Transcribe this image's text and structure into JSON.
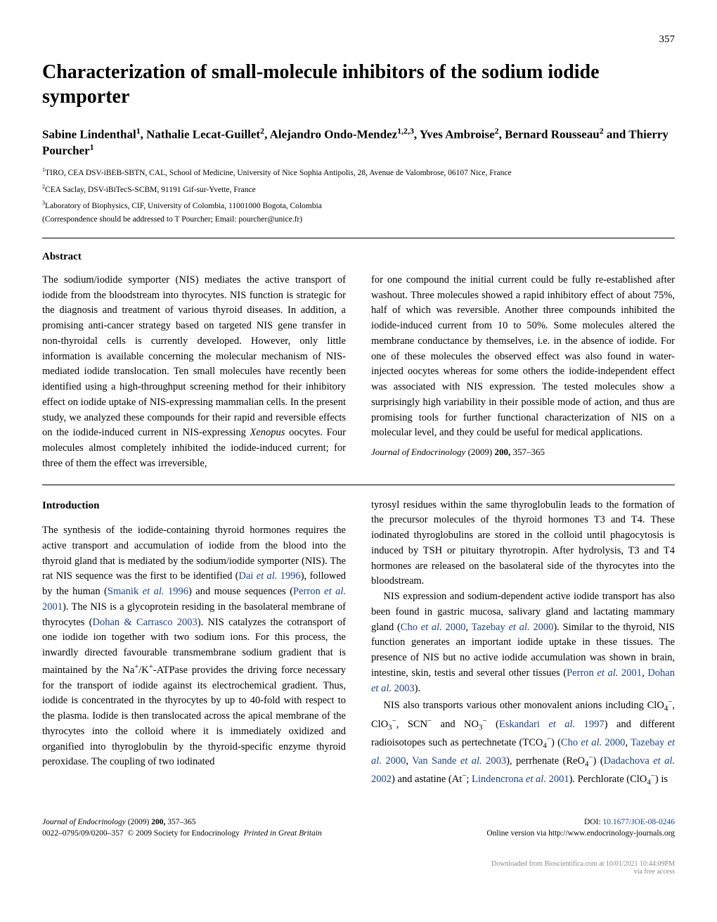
{
  "page_number": "357",
  "title": "Characterization of small-molecule inhibitors of the sodium iodide symporter",
  "authors_html": "Sabine Lindenthal<sup>1</sup>, Nathalie Lecat-Guillet<sup>2</sup>, Alejandro Ondo-Mendez<sup>1,2,3</sup>, Yves Ambroise<sup>2</sup>, Bernard Rousseau<sup>2</sup> and Thierry Pourcher<sup>1</sup>",
  "affiliations": [
    "<sup>1</sup>TIRO, CEA DSV-iBEB-SBTN, CAL, School of Medicine, University of Nice Sophia Antipolis, 28, Avenue de Valombrose, 06107 Nice, France",
    "<sup>2</sup>CEA Saclay, DSV-iBiTecS-SCBM, 91191 Gif-sur-Yvette, France",
    "<sup>3</sup>Laboratory of Biophysics, CIF, University of Colombia, 11001000 Bogota, Colombia"
  ],
  "correspondence": "(Correspondence should be addressed to T Pourcher; Email: pourcher@unice.fr)",
  "abstract": {
    "heading": "Abstract",
    "left": "The sodium/iodide symporter (NIS) mediates the active transport of iodide from the bloodstream into thyrocytes. NIS function is strategic for the diagnosis and treatment of various thyroid diseases. In addition, a promising anti-cancer strategy based on targeted NIS gene transfer in non-thyroidal cells is currently developed. However, only little information is available concerning the molecular mechanism of NIS-mediated iodide translocation. Ten small molecules have recently been identified using a high-throughput screening method for their inhibitory effect on iodide uptake of NIS-expressing mammalian cells. In the present study, we analyzed these compounds for their rapid and reversible effects on the iodide-induced current in NIS-expressing <i>Xenopus</i> oocytes. Four molecules almost completely inhibited the iodide-induced current; for three of them the effect was irreversible,",
    "right": "for one compound the initial current could be fully re-established after washout. Three molecules showed a rapid inhibitory effect of about 75%, half of which was reversible. Another three compounds inhibited the iodide-induced current from 10 to 50%. Some molecules altered the membrane conductance by themselves, i.e. in the absence of iodide. For one of these molecules the observed effect was also found in water-injected oocytes whereas for some others the iodide-independent effect was associated with NIS expression. The tested molecules show a surprisingly high variability in their possible mode of action, and thus are promising tools for further functional characterization of NIS on a molecular level, and they could be useful for medical applications.",
    "citation_journal": "Journal of Endocrinology",
    "citation_year": "(2009)",
    "citation_vol": "200,",
    "citation_pages": "357–365"
  },
  "introduction": {
    "heading": "Introduction",
    "left_paras": [
      "The synthesis of the iodide-containing thyroid hormones requires the active transport and accumulation of iodide from the blood into the thyroid gland that is mediated by the sodium/iodide symporter (NIS). The rat NIS sequence was the first to be identified (<span class=\"blue\">Dai <i>et al.</i> 1996</span>), followed by the human (<span class=\"blue\">Smanik <i>et al.</i> 1996</span>) and mouse sequences (<span class=\"blue\">Perron <i>et al.</i> 2001</span>). The NIS is a glycoprotein residing in the basolateral membrane of thyrocytes (<span class=\"blue\">Dohan &amp; Carrasco 2003</span>). NIS catalyzes the cotransport of one iodide ion together with two sodium ions. For this process, the inwardly directed favourable transmembrane sodium gradient that is maintained by the Na<span class=\"supn\">+</span>/K<span class=\"supn\">+</span>-ATPase provides the driving force necessary for the transport of iodide against its electrochemical gradient. Thus, iodide is concentrated in the thyrocytes by up to 40-fold with respect to the plasma. Iodide is then translocated across the apical membrane of the thyrocytes into the colloid where it is immediately oxidized and organified into thyroglobulin by the thyroid-specific enzyme thyroid peroxidase. The coupling of two iodinated"
    ],
    "right_paras": [
      "tyrosyl residues within the same thyroglobulin leads to the formation of the precursor molecules of the thyroid hormones T3 and T4. These iodinated thyroglobulins are stored in the colloid until phagocytosis is induced by TSH or pituitary thyrotropin. After hydrolysis, T3 and T4 hormones are released on the basolateral side of the thyrocytes into the bloodstream.",
      "NIS expression and sodium-dependent active iodide transport has also been found in gastric mucosa, salivary gland and lactating mammary gland (<span class=\"blue\">Cho <i>et al.</i> 2000</span>, <span class=\"blue\">Tazebay <i>et al.</i> 2000</span>). Similar to the thyroid, NIS function generates an important iodide uptake in these tissues. The presence of NIS but no active iodide accumulation was shown in brain, intestine, skin, testis and several other tissues (<span class=\"blue\">Perron <i>et al.</i> 2001</span>, <span class=\"blue\">Dohan <i>et al.</i> 2003</span>).",
      "NIS also transports various other monovalent anions including ClO<sub>4</sub><span class=\"supn\">−</span>, ClO<sub>3</sub><span class=\"supn\">−</span>, SCN<span class=\"supn\">−</span> and NO<sub>3</sub><span class=\"supn\">−</span> (<span class=\"blue\">Eskandari <i>et al.</i> 1997</span>) and different radioisotopes such as pertechnetate (TCO<sub>4</sub><span class=\"supn\">−</span>) (<span class=\"blue\">Cho <i>et al.</i> 2000</span>, <span class=\"blue\">Tazebay <i>et al.</i> 2000</span>, <span class=\"blue\">Van Sande <i>et al.</i> 2003</span>), perrhenate (ReO<sub>4</sub><span class=\"supn\">−</span>) (<span class=\"blue\">Dadachova <i>et al.</i> 2002</span>) and astatine (At<span class=\"supn\">−</span>; <span class=\"blue\">Lindencrona <i>et al.</i> 2001</span>). Perchlorate (ClO<sub>4</sub><span class=\"supn\">−</span>) is"
    ]
  },
  "footer": {
    "left_line1_html": "<i>Journal of Endocrinology</i> (2009) <b>200,</b> 357–365",
    "left_line2_html": "0022–0795/09/0200–357 &nbsp;© 2009 Society for Endocrinology &nbsp;<i>Printed in Great Britain</i>",
    "right_line1_html": "DOI: <span class=\"blue\">10.1677/JOE-08-0246</span>",
    "right_line2": "Online version via http://www.endocrinology-journals.org"
  },
  "download_note": "Downloaded from Bioscientifica.com at 10/01/2021 10:44:09PM\nvia free access",
  "colors": {
    "link_blue": "#1a3f8f",
    "text": "#000000",
    "grey_note": "#888888"
  }
}
